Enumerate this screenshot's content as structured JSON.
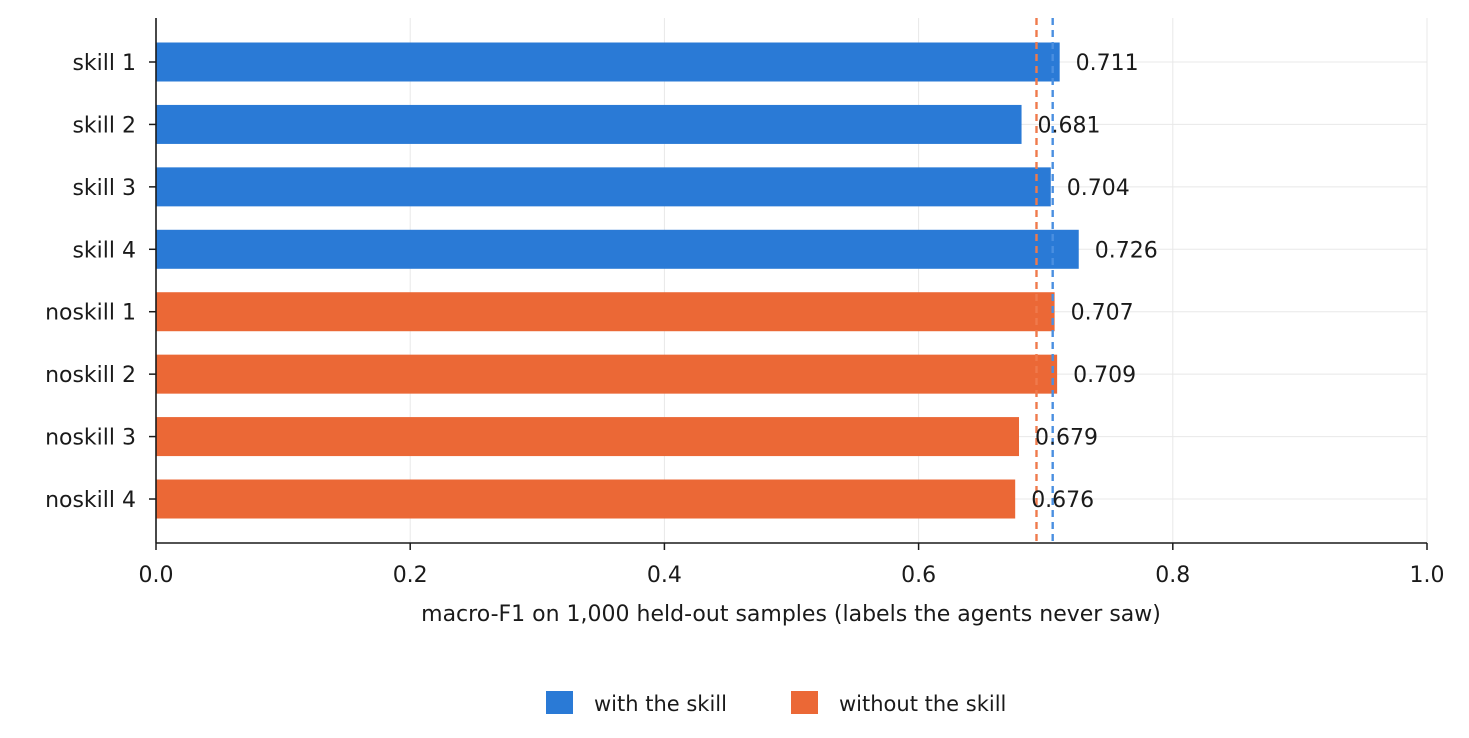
{
  "chart_data": {
    "type": "bar",
    "orientation": "horizontal",
    "categories": [
      "skill 1",
      "skill 2",
      "skill 3",
      "skill 4",
      "noskill 1",
      "noskill 2",
      "noskill 3",
      "noskill 4"
    ],
    "values": [
      0.711,
      0.681,
      0.704,
      0.726,
      0.707,
      0.709,
      0.679,
      0.676
    ],
    "value_labels": [
      "0.711",
      "0.681",
      "0.704",
      "0.726",
      "0.707",
      "0.709",
      "0.679",
      "0.676"
    ],
    "groups": [
      "with",
      "with",
      "with",
      "with",
      "without",
      "without",
      "without",
      "without"
    ],
    "series": [
      {
        "key": "with",
        "name": "with the skill",
        "color": "#2a7ad6"
      },
      {
        "key": "without",
        "name": "without the skill",
        "color": "#eb6836"
      }
    ],
    "reference_lines": [
      {
        "group": "with",
        "value": 0.7055,
        "color": "#4a8fe0",
        "style": "dashed"
      },
      {
        "group": "without",
        "value": 0.69275,
        "color": "#ef7a4c",
        "style": "dashed"
      }
    ],
    "xlim": [
      0.0,
      1.0
    ],
    "xticks": [
      0.0,
      0.2,
      0.4,
      0.6,
      0.8,
      1.0
    ],
    "xtick_labels": [
      "0.0",
      "0.2",
      "0.4",
      "0.6",
      "0.8",
      "1.0"
    ],
    "xlabel": "macro-F1 on 1,000 held-out samples (labels the agents never saw)",
    "ylabel": "",
    "title": "",
    "grid": true,
    "legend_position": "bottom-center"
  }
}
